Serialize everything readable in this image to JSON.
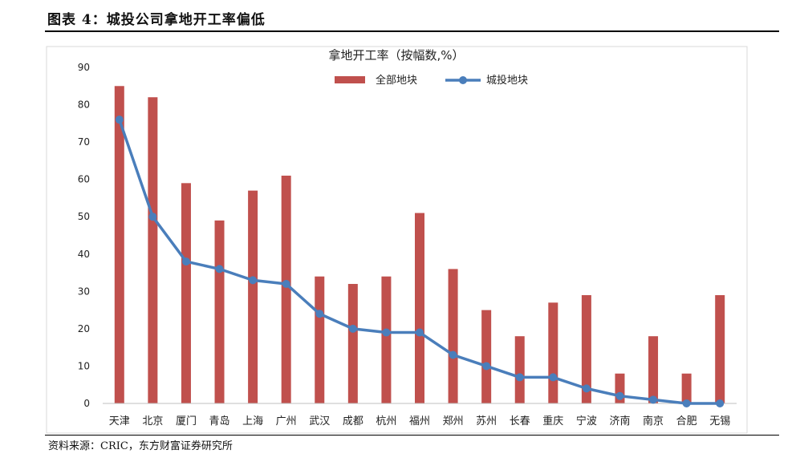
{
  "figure": {
    "title": "图表 4：城投公司拿地开工率偏低",
    "source": "资料来源：CRIC，东方财富证券研究所"
  },
  "chart_data": {
    "type": "bar",
    "title": "拿地开工率（按幅数,%）",
    "categories": [
      "天津",
      "北京",
      "厦门",
      "青岛",
      "上海",
      "广州",
      "武汉",
      "成都",
      "杭州",
      "福州",
      "郑州",
      "苏州",
      "长春",
      "重庆",
      "宁波",
      "济南",
      "南京",
      "合肥",
      "无锡"
    ],
    "series": [
      {
        "name": "全部地块",
        "kind": "bar",
        "color": "#c0504d",
        "values": [
          85,
          82,
          59,
          49,
          57,
          61,
          34,
          32,
          34,
          51,
          36,
          25,
          18,
          27,
          29,
          8,
          18,
          8,
          29
        ]
      },
      {
        "name": "城投地块",
        "kind": "line",
        "color": "#4a7ebb",
        "values": [
          76,
          50,
          38,
          36,
          33,
          32,
          24,
          20,
          19,
          19,
          13,
          10,
          7,
          7,
          4,
          2,
          1,
          0,
          0
        ]
      }
    ],
    "ylim": [
      0,
      90
    ],
    "yticks": [
      0,
      10,
      20,
      30,
      40,
      50,
      60,
      70,
      80,
      90
    ],
    "grid": false,
    "legend": "top-center"
  }
}
